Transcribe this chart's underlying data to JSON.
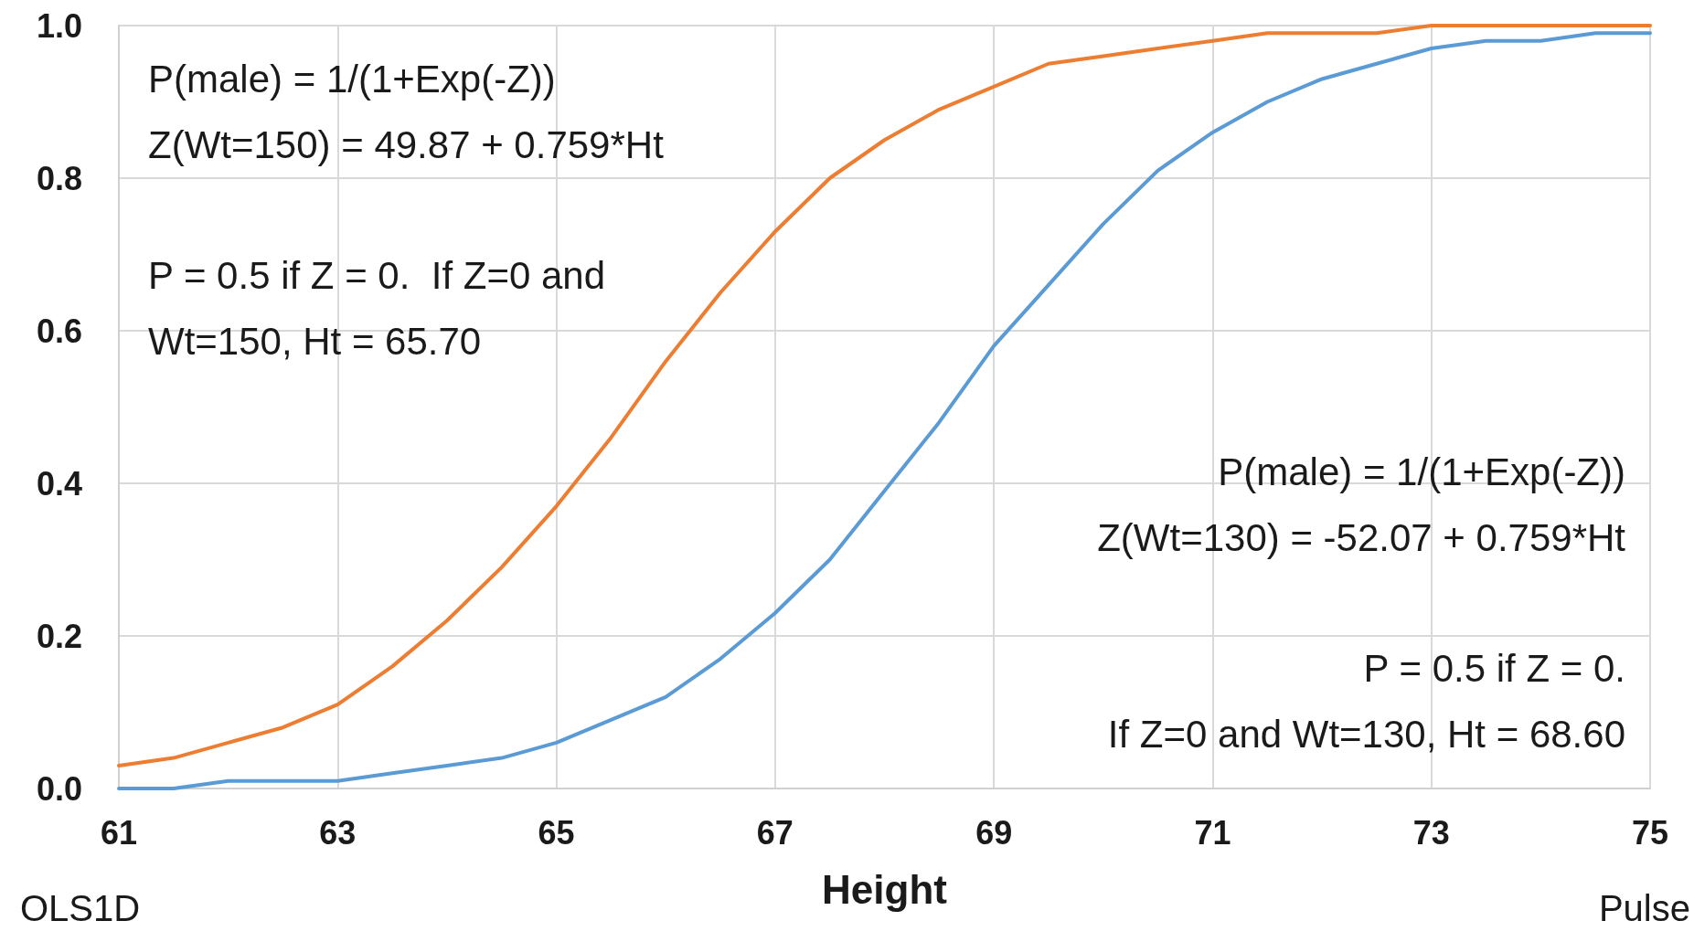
{
  "chart_data": {
    "type": "line",
    "xlabel": "Height",
    "x": [
      61,
      61.5,
      62,
      62.5,
      63,
      63.5,
      64,
      64.5,
      65,
      65.5,
      66,
      66.5,
      67,
      67.5,
      68,
      68.5,
      69,
      69.5,
      70,
      70.5,
      71,
      71.5,
      72,
      72.5,
      73,
      73.5,
      74,
      74.5,
      75
    ],
    "series": [
      {
        "color": "#ed7d31",
        "values": [
          0.03,
          0.04,
          0.06,
          0.08,
          0.11,
          0.16,
          0.22,
          0.29,
          0.37,
          0.46,
          0.56,
          0.65,
          0.73,
          0.8,
          0.85,
          0.89,
          0.92,
          0.95,
          0.96,
          0.97,
          0.98,
          0.99,
          0.99,
          0.99,
          1.0,
          1.0,
          1.0,
          1.0,
          1.0
        ]
      },
      {
        "color": "#5b9bd5",
        "values": [
          0.0,
          0.0,
          0.01,
          0.01,
          0.01,
          0.02,
          0.03,
          0.04,
          0.06,
          0.09,
          0.12,
          0.17,
          0.23,
          0.3,
          0.39,
          0.48,
          0.58,
          0.66,
          0.74,
          0.81,
          0.86,
          0.9,
          0.93,
          0.95,
          0.97,
          0.98,
          0.98,
          0.99,
          0.99
        ]
      }
    ],
    "xlim": [
      61,
      75
    ],
    "xticks": [
      61,
      63,
      65,
      67,
      69,
      71,
      73,
      75
    ],
    "ylim": [
      0,
      1
    ],
    "yticks": [
      {
        "value": 0,
        "label": "0.0"
      },
      0.2,
      0.4,
      0.6,
      0.8,
      {
        "value": 1,
        "label": "1.0"
      }
    ],
    "grid": true,
    "marker": "none",
    "line_style": "solid",
    "annotations": [
      "P(male) = 1/(1+Exp(-Z))\nZ(Wt=150) = 49.87 + 0.759*Ht",
      "P = 0.5 if Z = 0.  If Z=0 and\nWt=150, Ht = 65.70",
      "P(male) = 1/(1+Exp(-Z))\nZ(Wt=130) = -52.07 + 0.759*Ht",
      "P = 0.5 if Z = 0.\nIf Z=0 and Wt=130, Ht = 68.60",
      "OLS1D",
      "Pulse"
    ]
  }
}
